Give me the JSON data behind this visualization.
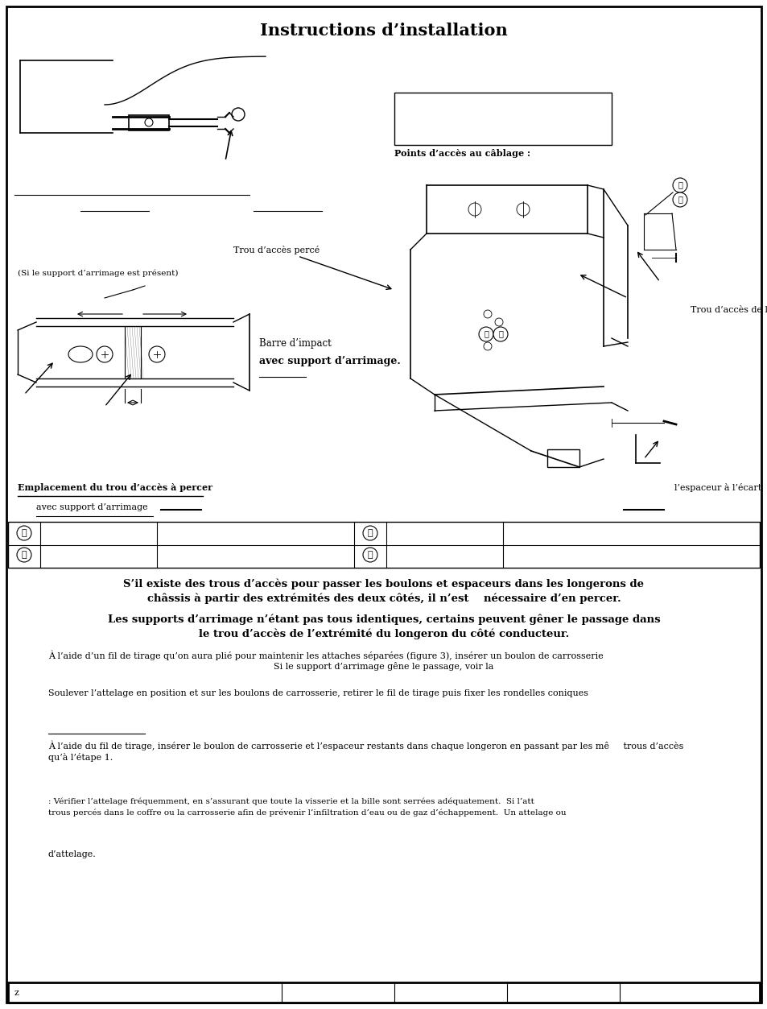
{
  "title": "Instructions d’installation",
  "bg_color": "#ffffff",
  "title_fontsize": 15,
  "labels": {
    "points_acces": "Points d’accès au câblage :",
    "trou_perce": "Trou d’accès percé",
    "trou_extremite": "Trou d’accès de l’extrémité",
    "barre_impact": "Barre d’impact",
    "avec_support_bold": "avec support d’arrimage.",
    "si_support": "(Si le support d’arrimage est présent)",
    "emplacement": "Emplacement du trou d’accès à percer",
    "avec_support2": "avec support d’arrimage",
    "espaceur": "l’espaceur à l’écart",
    "footer_z": "z"
  },
  "para1_line1": "S’il existe des trous d’accès pour passer les boulons et espaceurs dans les longerons de",
  "para1_line2": "châssis à partir des extrémités des deux côtés, il n’est    nécessaire d’en percer.",
  "para2_line1": "Les supports d’arrimage n’étant pas tous identiques, certains peuvent gêner le passage dans",
  "para2_line2": "le trou d’accès de l’extrémité du longeron du côté conducteur.",
  "para3_line1": "À l’aide d’un fil de tirage qu’on aura plié pour maintenir les attaches séparées (figure 3), insérer un boulon de carrosserie",
  "para3_line2": "Si le support d’arrimage gêne le passage, voir la",
  "para4": "Soulever l’attelage en position et sur les boulons de carrosserie, retirer le fil de tirage puis fixer les rondelles coniques",
  "para5_line1": "À l’aide du fil de tirage, insérer le boulon de carrosserie et l’espaceur restants dans chaque longeron en passant par les mê     trous d’accès",
  "para5_line2": "qu’à l’étape 1.",
  "para6_line1": ": Vérifier l’attelage fréquemment, en s’assurant que toute la visserie et la bille sont serrées adéquatement.  Si l’att",
  "para6_line2": "trous percés dans le coffre ou la carrosserie afin de prévenir l’infiltration d’eau ou de gaz d’échappement.  Un attelage ou",
  "para7": "d’attelage."
}
